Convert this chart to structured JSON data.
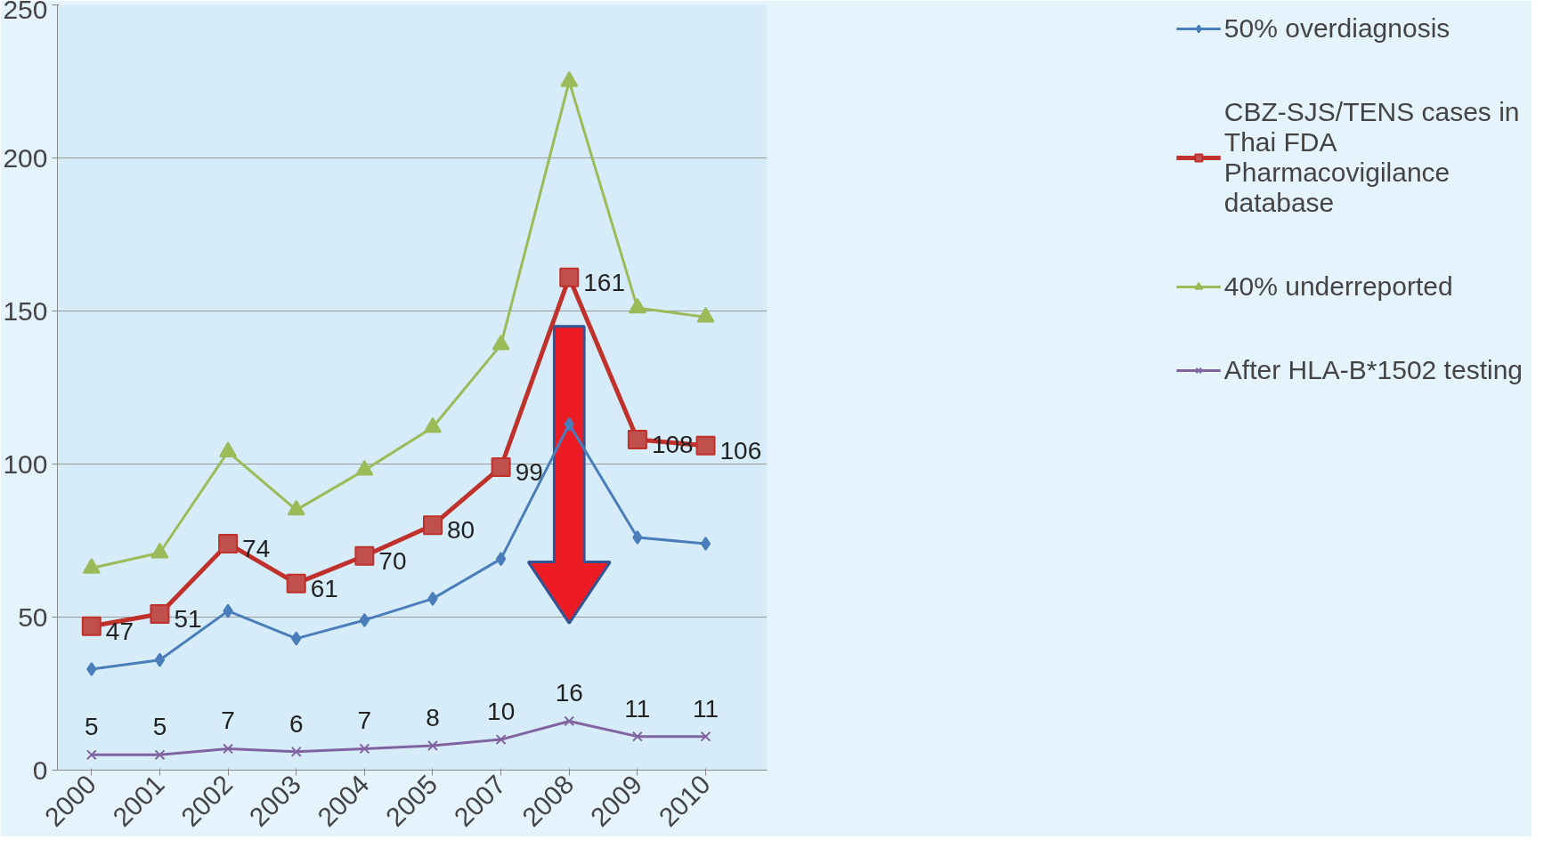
{
  "chart_data": {
    "type": "line",
    "categories": [
      "2000",
      "2001",
      "2002",
      "2003",
      "2004",
      "2005",
      "2007",
      "2008",
      "2009",
      "2010"
    ],
    "ylim": [
      0,
      250
    ],
    "yticks": [
      0,
      50,
      100,
      150,
      200,
      250
    ],
    "grid": "y",
    "legend": "right",
    "series": [
      {
        "name": "50% overdiagnosis",
        "color": "#4a7ebb",
        "marker": "diamond",
        "values": [
          33,
          36,
          52,
          43,
          49,
          56,
          69,
          113,
          76,
          74
        ]
      },
      {
        "name": "CBZ-SJS/TENS cases in Thai FDA Pharmacovigilance database",
        "color": "#c0312b",
        "marker": "square",
        "data_labels": true,
        "values": [
          47,
          51,
          74,
          61,
          70,
          80,
          99,
          161,
          108,
          106
        ]
      },
      {
        "name": "40% underreported",
        "color": "#9bbb59",
        "marker": "triangle",
        "values": [
          66,
          71,
          104,
          85,
          98,
          112,
          139,
          225,
          151,
          148
        ]
      },
      {
        "name": "After HLA-B*1502 testing",
        "color": "#8064a2",
        "marker": "x",
        "data_labels": true,
        "values": [
          5,
          5,
          7,
          6,
          7,
          8,
          10,
          16,
          11,
          11
        ]
      }
    ]
  }
}
